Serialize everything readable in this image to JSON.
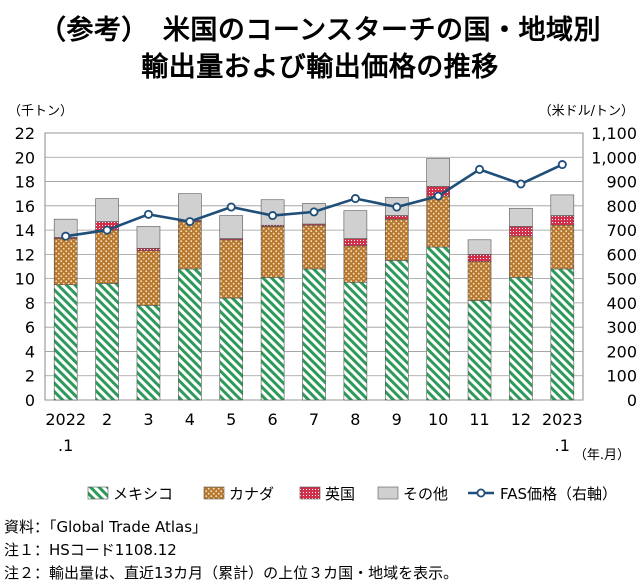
{
  "header": {
    "title_line1": "（参考）　米国のコーンスターチの国・地域別",
    "title_line2": "輸出量および輸出価格の推移"
  },
  "notes": {
    "source": "資料：「Global Trade Atlas」",
    "note1": "注１：HSコード1108.12",
    "note2": "注２：輸出量は、直近13カ月（累計）の上位３カ国・地域を表示。"
  },
  "colors": {
    "mexico": "#2e9a5a",
    "canada": "#b8782e",
    "uk": "#d2304a",
    "other": "#d0d0d0",
    "fas_line": "#1f4e79"
  },
  "chart_data": {
    "type": "bar",
    "stacked": true,
    "categories": [
      "2022\n.1",
      "2",
      "3",
      "4",
      "5",
      "6",
      "7",
      "8",
      "9",
      "10",
      "11",
      "12",
      "2023\n.1"
    ],
    "x_tick_labels": [
      [
        "2022",
        ".1"
      ],
      [
        "2"
      ],
      [
        "3"
      ],
      [
        "4"
      ],
      [
        "5"
      ],
      [
        "6"
      ],
      [
        "7"
      ],
      [
        "8"
      ],
      [
        "9"
      ],
      [
        "10"
      ],
      [
        "11"
      ],
      [
        "12"
      ],
      [
        "2023",
        ".1"
      ]
    ],
    "xlabel_unit": "（年.月）",
    "ylabel_left": "（千トン）",
    "ylabel_right": "（米ドル/トン）",
    "ylim_left": [
      0,
      22
    ],
    "yticks_left": [
      "0",
      "2",
      "4",
      "6",
      "8",
      "10",
      "12",
      "14",
      "16",
      "18",
      "20",
      "22"
    ],
    "ylim_right": [
      0,
      1100
    ],
    "yticks_right": [
      "0",
      "100",
      "200",
      "300",
      "400",
      "500",
      "600",
      "700",
      "800",
      "900",
      "1,000",
      "1,100"
    ],
    "series": [
      {
        "name": "メキシコ",
        "key": "mexico",
        "values": [
          9.5,
          9.6,
          7.8,
          10.8,
          8.4,
          10.1,
          10.8,
          9.7,
          11.5,
          12.6,
          8.2,
          10.1,
          10.8
        ]
      },
      {
        "name": "カナダ",
        "key": "canada",
        "values": [
          3.8,
          4.4,
          4.5,
          3.9,
          4.8,
          4.2,
          3.6,
          3.0,
          3.4,
          4.2,
          3.2,
          3.4,
          3.6
        ]
      },
      {
        "name": "英国",
        "key": "uk",
        "values": [
          0.1,
          0.7,
          0.2,
          0.1,
          0.1,
          0.1,
          0.1,
          0.6,
          0.3,
          0.8,
          0.6,
          0.8,
          0.8
        ]
      },
      {
        "name": "その他",
        "key": "other",
        "values": [
          1.5,
          1.9,
          1.8,
          2.2,
          1.9,
          2.1,
          1.7,
          2.3,
          1.5,
          2.3,
          1.2,
          1.5,
          1.7
        ]
      }
    ],
    "line_series": {
      "name": "FAS価格（右軸）",
      "axis": "right",
      "values": [
        675,
        700,
        765,
        735,
        795,
        760,
        775,
        830,
        795,
        840,
        950,
        890,
        970
      ]
    },
    "grid": "horizontal",
    "legend_position": "bottom"
  }
}
